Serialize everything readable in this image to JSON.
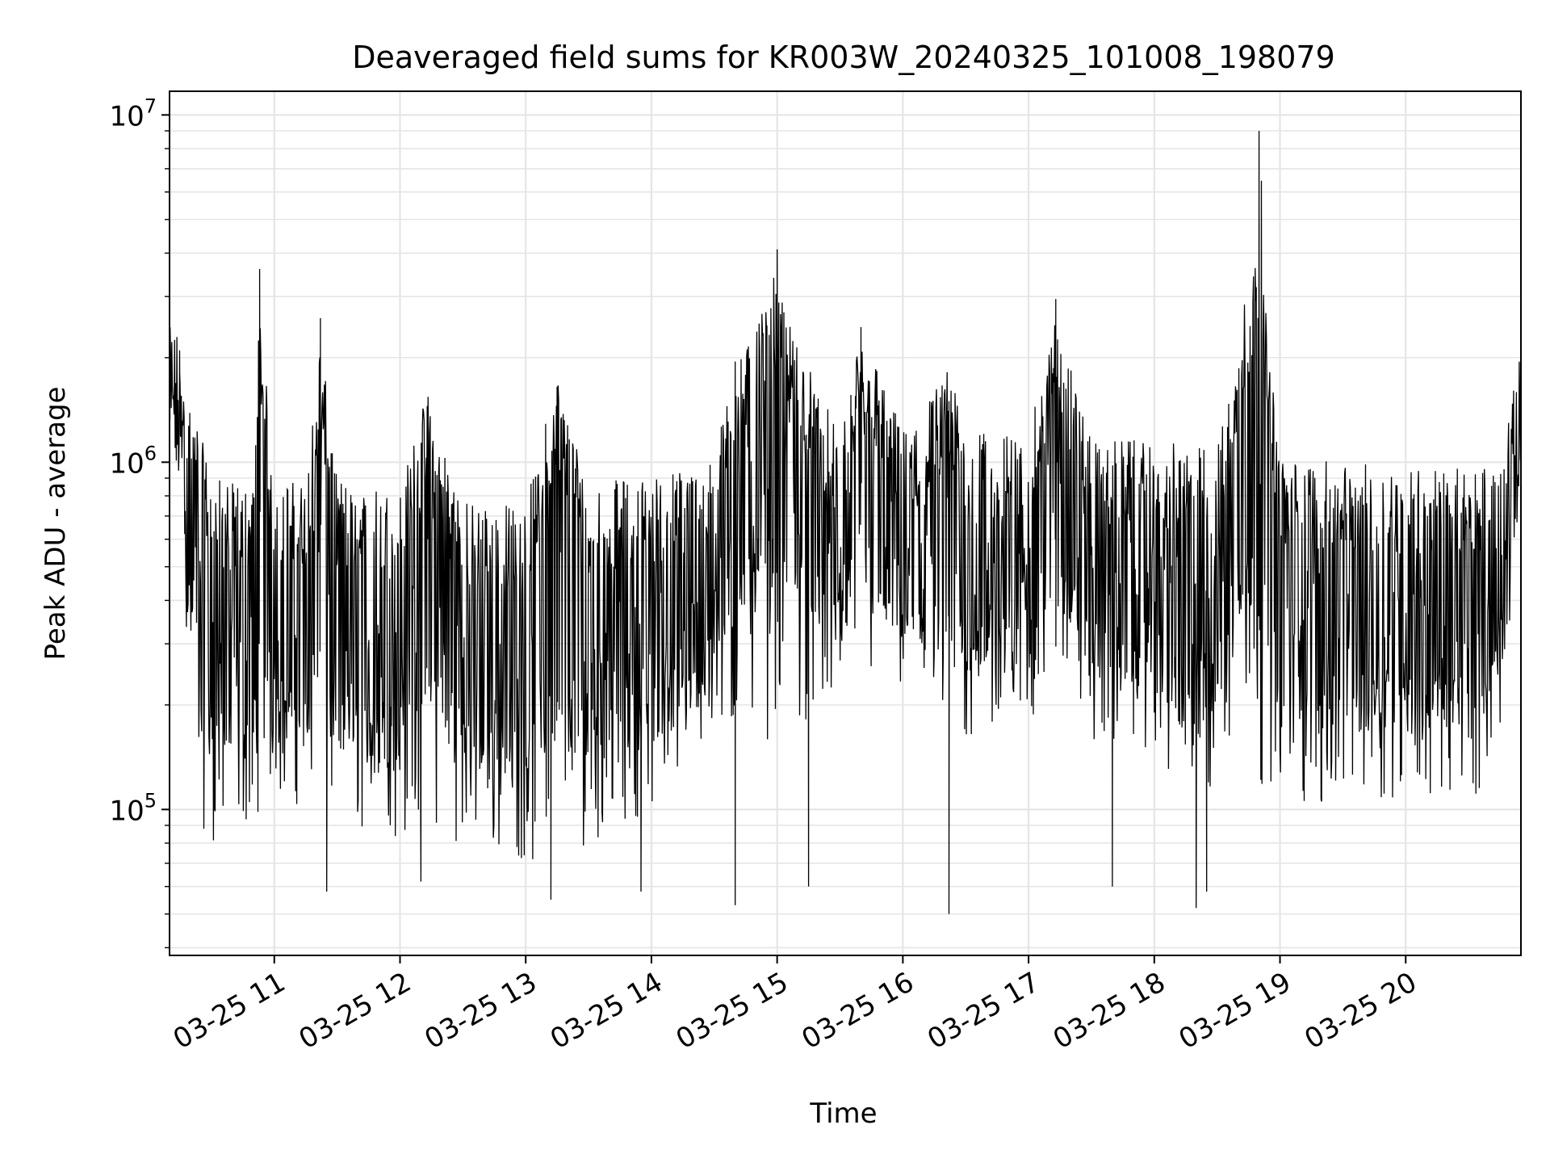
{
  "chart_data": {
    "type": "line",
    "title": "Deaveraged field sums for KR003W_20240325_101008_198079",
    "xlabel": "Time",
    "ylabel": "Peak ADU - average",
    "yscale": "log",
    "ylim": [
      38000,
      11700000
    ],
    "xlim": [
      "2024-03-25 10:10",
      "2024-03-25 20:55"
    ],
    "grid": true,
    "line_color": "#000000",
    "grid_color": "#e5e5e5",
    "x_ticks": [
      {
        "t": "2024-03-25 11:00",
        "label": "03-25 11"
      },
      {
        "t": "2024-03-25 12:00",
        "label": "03-25 12"
      },
      {
        "t": "2024-03-25 13:00",
        "label": "03-25 13"
      },
      {
        "t": "2024-03-25 14:00",
        "label": "03-25 14"
      },
      {
        "t": "2024-03-25 15:00",
        "label": "03-25 15"
      },
      {
        "t": "2024-03-25 16:00",
        "label": "03-25 16"
      },
      {
        "t": "2024-03-25 17:00",
        "label": "03-25 17"
      },
      {
        "t": "2024-03-25 18:00",
        "label": "03-25 18"
      },
      {
        "t": "2024-03-25 19:00",
        "label": "03-25 19"
      },
      {
        "t": "2024-03-25 20:00",
        "label": "03-25 20"
      }
    ],
    "y_ticks": [
      {
        "value": 100000,
        "mantissa": "10",
        "exponent": "5"
      },
      {
        "value": 1000000,
        "mantissa": "10",
        "exponent": "6"
      },
      {
        "value": 10000000,
        "mantissa": "10",
        "exponent": "7"
      }
    ],
    "series": [
      {
        "x": [
          "2024-03-25 10:10",
          "2024-03-25 10:15",
          "2024-03-25 10:20",
          "2024-03-25 10:25",
          "2024-03-25 10:30",
          "2024-03-25 10:40",
          "2024-03-25 10:50",
          "2024-03-25 10:53",
          "2024-03-25 11:00",
          "2024-03-25 11:15",
          "2024-03-25 11:22",
          "2024-03-25 11:30",
          "2024-03-25 12:00",
          "2024-03-25 12:13",
          "2024-03-25 12:30",
          "2024-03-25 13:00",
          "2024-03-25 13:15",
          "2024-03-25 13:30",
          "2024-03-25 14:00",
          "2024-03-25 14:30",
          "2024-03-25 14:40",
          "2024-03-25 15:00",
          "2024-03-25 15:30",
          "2024-03-25 15:40",
          "2024-03-25 16:00",
          "2024-03-25 16:22",
          "2024-03-25 16:30",
          "2024-03-25 17:00",
          "2024-03-25 17:13",
          "2024-03-25 17:30",
          "2024-03-25 18:00",
          "2024-03-25 18:20",
          "2024-03-25 18:30",
          "2024-03-25 18:50",
          "2024-03-25 19:00",
          "2024-03-25 19:30",
          "2024-03-25 20:00",
          "2024-03-25 20:30",
          "2024-03-25 20:45",
          "2024-03-25 20:55"
        ],
        "y": [
          1500000,
          1700000,
          1100000,
          650000,
          420000,
          380000,
          360000,
          3600000,
          420000,
          380000,
          2600000,
          400000,
          380000,
          1450000,
          350000,
          330000,
          1650000,
          380000,
          420000,
          480000,
          1950000,
          4100000,
          550000,
          2450000,
          600000,
          1500000,
          580000,
          610000,
          2950000,
          620000,
          600000,
          580000,
          560000,
          9000000,
          520000,
          500000,
          480000,
          460000,
          500000,
          1300000
        ],
        "min_envelope": [
          900000,
          700000,
          150000,
          90000,
          80000,
          85000,
          90000,
          100000,
          110000,
          100000,
          95000,
          90000,
          80000,
          85000,
          80000,
          70000,
          60000,
          80000,
          100000,
          150000,
          150000,
          160000,
          200000,
          220000,
          200000,
          120000,
          150000,
          180000,
          200000,
          150000,
          150000,
          80000,
          120000,
          120000,
          100000,
          100000,
          110000,
          100000,
          150000,
          900000
        ],
        "max_envelope": [
          2200000,
          2000000,
          1300000,
          1200000,
          1100000,
          1100000,
          1100000,
          1200000,
          1100000,
          1100000,
          1100000,
          1100000,
          1000000,
          1000000,
          950000,
          950000,
          1100000,
          1100000,
          1100000,
          1200000,
          1200000,
          1300000,
          1400000,
          1450000,
          1400000,
          1300000,
          1400000,
          1300000,
          1300000,
          1250000,
          1200000,
          1200000,
          1200000,
          1150000,
          1100000,
          1100000,
          1100000,
          1100000,
          1150000,
          1900000
        ],
        "notable_minima": [
          {
            "t": "2024-03-25 11:25",
            "y": 58000
          },
          {
            "t": "2024-03-25 12:10",
            "y": 62000
          },
          {
            "t": "2024-03-25 13:12",
            "y": 55000
          },
          {
            "t": "2024-03-25 13:55",
            "y": 58000
          },
          {
            "t": "2024-03-25 14:40",
            "y": 53000
          },
          {
            "t": "2024-03-25 15:15",
            "y": 60000
          },
          {
            "t": "2024-03-25 16:22",
            "y": 50000
          },
          {
            "t": "2024-03-25 17:40",
            "y": 60000
          },
          {
            "t": "2024-03-25 18:20",
            "y": 52000
          },
          {
            "t": "2024-03-25 18:25",
            "y": 58000
          }
        ]
      }
    ]
  }
}
